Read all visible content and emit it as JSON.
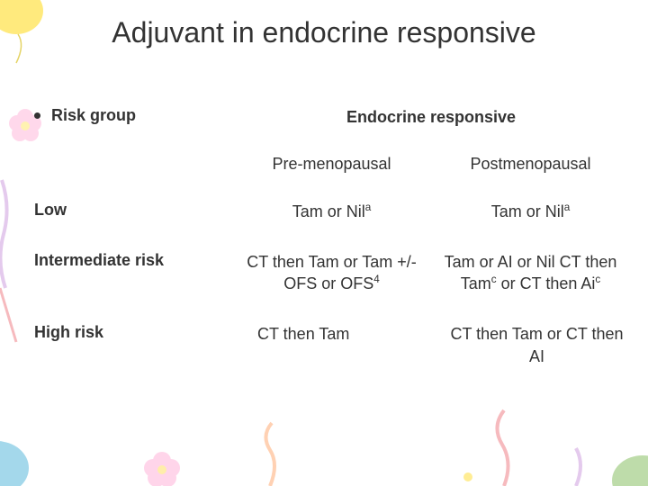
{
  "title": "Adjuvant in endocrine responsive",
  "risk_header": "Risk group",
  "endo_header": "Endocrine responsive",
  "sub_pre": "Pre-menopausal",
  "sub_post": "Postmenopausal",
  "rows": [
    {
      "label": "Low",
      "pre": "Tam or Nil<sup>a</sup>",
      "post": "Tam or Nil<sup>a</sup>"
    },
    {
      "label": "Intermediate risk",
      "pre": "CT then Tam or Tam +/- OFS or OFS<sup>4</sup>",
      "post": "Tam or AI or Nil CT then Tam<sup>c</sup> or CT then Ai<sup>c</sup>"
    },
    {
      "label": "High risk",
      "pre": "CT then Tam",
      "post": "CT then Tam or CT then AI"
    }
  ],
  "deco_colors": {
    "yellow": "#ffe666",
    "pink": "#ffb3d9",
    "purple": "#b366cc",
    "red": "#e63946",
    "orange": "#ff8c42",
    "blue": "#7ec8e3",
    "green": "#a8d08d"
  }
}
